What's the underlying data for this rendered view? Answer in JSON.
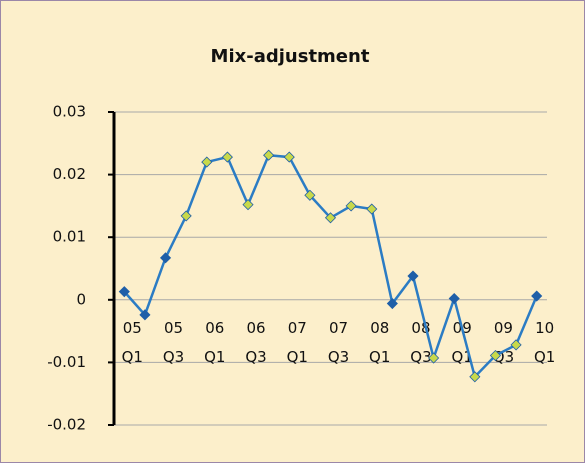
{
  "chart_data": {
    "type": "line",
    "title": "Mix-adjustment",
    "categories": [
      "05 Q1",
      null,
      "05 Q3",
      null,
      "06 Q1",
      null,
      "06 Q3",
      null,
      "07 Q1",
      null,
      "07 Q3",
      null,
      "08 Q1",
      null,
      "08 Q3",
      null,
      "09 Q1",
      null,
      "09 Q3",
      null,
      "10 Q1"
    ],
    "series": [
      {
        "name": "Mix-adjustment",
        "color": "#2b7cc4",
        "values": [
          0.0013,
          -0.0024,
          0.0067,
          0.0134,
          0.022,
          0.0228,
          0.0152,
          0.0231,
          0.0228,
          0.0167,
          0.0131,
          0.015,
          0.0145,
          -0.0006,
          0.0038,
          -0.0093,
          0.0002,
          -0.0123,
          -0.0089,
          -0.0072,
          0.0006
        ],
        "marker_colors": [
          "#1f5fa8",
          "#1f5fa8",
          "#1f5fa8",
          "#c8d94a",
          "#c8d94a",
          "#c8d94a",
          "#c8d94a",
          "#c8d94a",
          "#c8d94a",
          "#c8d94a",
          "#c8d94a",
          "#c8d94a",
          "#c8d94a",
          "#1f5fa8",
          "#1f5fa8",
          "#c8d94a",
          "#1f5fa8",
          "#c8d94a",
          "#c8d94a",
          "#c8d94a",
          "#1f5fa8"
        ]
      }
    ],
    "ylim": [
      -0.02,
      0.03
    ],
    "yticks": [
      -0.02,
      -0.01,
      0,
      0.01,
      0.02,
      0.03
    ],
    "grid": true
  }
}
